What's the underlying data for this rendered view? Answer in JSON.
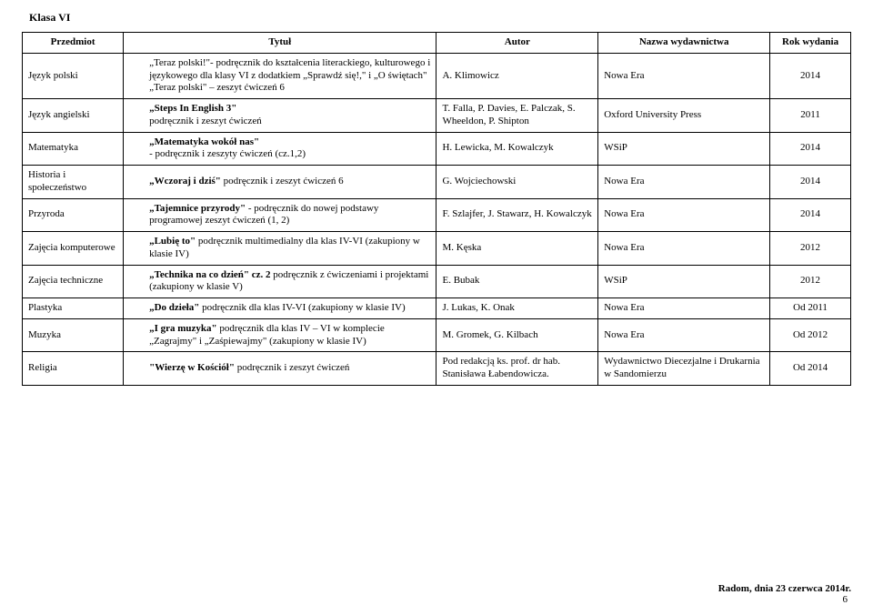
{
  "class_label": "Klasa VI",
  "headers": {
    "subject": "Przedmiot",
    "title": "Tytuł",
    "author": "Autor",
    "publisher": "Nazwa wydawnictwa",
    "year": "Rok wydania"
  },
  "rows": [
    {
      "subject": "Język polski",
      "title": "„Teraz polski!\"- podręcznik do kształcenia literackiego, kulturowego i językowego dla klasy VI z dodatkiem „Sprawdź się!,\" i „O świętach\" „Teraz polski\" – zeszyt ćwiczeń 6",
      "author": "A. Klimowicz",
      "publisher": "Nowa Era",
      "year": "2014"
    },
    {
      "subject": "Język angielski",
      "title_html": "<span class=\"bold\">„Steps In English 3\"</span><br>podręcznik i zeszyt ćwiczeń",
      "author": "T. Falla, P. Davies, E. Palczak, S. Wheeldon, P. Shipton",
      "publisher": "Oxford University Press",
      "year": "2011"
    },
    {
      "subject": "Matematyka",
      "title_html": "<span class=\"bold\">„Matematyka wokół nas\"</span><br>- podręcznik i zeszyty ćwiczeń (cz.1,2)",
      "author": "H. Lewicka, M. Kowalczyk",
      "publisher": "WSiP",
      "year": "2014"
    },
    {
      "subject": "Historia i społeczeństwo",
      "title_html": "<span class=\"bold\">„Wczoraj i dziś\"</span> podręcznik i zeszyt ćwiczeń 6",
      "author": "G. Wojciechowski",
      "publisher": "Nowa Era",
      "year": "2014"
    },
    {
      "subject": "Przyroda",
      "title_html": "<span class=\"bold\">„Tajemnice przyrody\"</span> - podręcznik do nowej podstawy programowej zeszyt ćwiczeń (1, 2)",
      "author": "F. Szlajfer, J. Stawarz, H. Kowalczyk",
      "publisher": "Nowa Era",
      "year": "2014"
    },
    {
      "subject": "Zajęcia komputerowe",
      "title_html": "<span class=\"bold\">„Lubię to\"</span> podręcznik multimedialny dla klas IV-VI (zakupiony w klasie IV)",
      "author": "M. Kęska",
      "publisher": "Nowa Era",
      "year": "2012"
    },
    {
      "subject": "Zajęcia techniczne",
      "title_html": "<span class=\"bold\">„Technika na co dzień\" cz. 2</span> podręcznik z ćwiczeniami i projektami (zakupiony w klasie V)",
      "author": "E. Bubak",
      "publisher": "WSiP",
      "year": "2012"
    },
    {
      "subject": "Plastyka",
      "title_html": "<span class=\"bold\">„Do dzieła\"</span> podręcznik dla klas IV-VI (zakupiony w klasie IV)",
      "author": "J. Lukas, K. Onak",
      "publisher": "Nowa Era",
      "year": "Od 2011"
    },
    {
      "subject": "Muzyka",
      "title_html": "<span class=\"bold\">„I gra muzyka\"</span> podręcznik dla klas IV – VI w komplecie „Zagrajmy\" i „Zaśpiewajmy\" (zakupiony w klasie IV)",
      "author": "M. Gromek, G. Kilbach",
      "publisher": "Nowa Era",
      "year": "Od 2012"
    },
    {
      "subject": "Religia",
      "title_html": "<span class=\"bold\">\"Wierzę w Kościół\"</span> podręcznik i zeszyt ćwiczeń",
      "author": "Pod redakcją ks. prof. dr hab. Stanisława Łabendowicza.",
      "publisher": "Wydawnictwo Diecezjalne i Drukarnia w Sandomierzu",
      "year": "Od 2014"
    }
  ],
  "footer_date": "Radom, dnia 23 czerwca 2014r.",
  "footer_page": "6"
}
